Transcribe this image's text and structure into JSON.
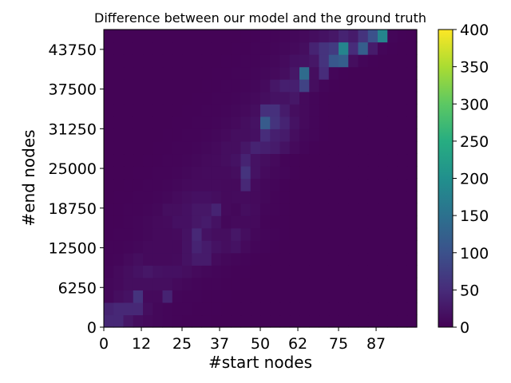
{
  "chart_data": {
    "type": "heatmap",
    "title": "Difference between our model and the ground truth",
    "xlabel": "#start nodes",
    "ylabel": "#end nodes",
    "x_ticks": [
      "0",
      "12",
      "25",
      "37",
      "50",
      "62",
      "75",
      "87"
    ],
    "y_ticks": [
      "0",
      "6250",
      "12500",
      "18750",
      "25000",
      "31250",
      "37500",
      "43750"
    ],
    "x_range": [
      0,
      100
    ],
    "y_range": [
      0,
      46875
    ],
    "colorbar": {
      "range": [
        0,
        400
      ],
      "ticks": [
        "0",
        "50",
        "100",
        "150",
        "200",
        "250",
        "300",
        "350",
        "400"
      ],
      "colormap": "viridis"
    },
    "grid": false,
    "legend": "none",
    "rows_bottom_to_top": [
      [
        45,
        45,
        25,
        15,
        10,
        8,
        6,
        5,
        4,
        4,
        4,
        3,
        3,
        3,
        3,
        3,
        3,
        3,
        3,
        3,
        3,
        3,
        3,
        3,
        3,
        3,
        3,
        3,
        3,
        3,
        3,
        3
      ],
      [
        40,
        45,
        45,
        45,
        15,
        8,
        6,
        5,
        5,
        4,
        4,
        4,
        3,
        3,
        3,
        3,
        3,
        3,
        3,
        3,
        3,
        3,
        3,
        3,
        3,
        3,
        3,
        3,
        3,
        3,
        3,
        3
      ],
      [
        8,
        15,
        20,
        60,
        10,
        10,
        40,
        6,
        5,
        5,
        4,
        4,
        4,
        3,
        3,
        3,
        3,
        3,
        3,
        3,
        3,
        3,
        3,
        3,
        3,
        3,
        3,
        3,
        3,
        3,
        3,
        3
      ],
      [
        8,
        10,
        15,
        15,
        15,
        15,
        15,
        10,
        8,
        6,
        5,
        5,
        4,
        4,
        3,
        3,
        3,
        3,
        3,
        3,
        3,
        3,
        3,
        3,
        3,
        3,
        3,
        3,
        3,
        3,
        3,
        3
      ],
      [
        6,
        10,
        15,
        20,
        25,
        20,
        18,
        18,
        15,
        10,
        8,
        6,
        5,
        4,
        4,
        3,
        3,
        3,
        3,
        3,
        3,
        3,
        3,
        3,
        3,
        3,
        3,
        3,
        3,
        3,
        3,
        3
      ],
      [
        5,
        6,
        10,
        15,
        10,
        10,
        10,
        12,
        20,
        30,
        30,
        12,
        8,
        6,
        5,
        4,
        3,
        3,
        3,
        3,
        3,
        3,
        3,
        3,
        3,
        3,
        3,
        3,
        3,
        3,
        3,
        3
      ],
      [
        5,
        5,
        6,
        8,
        10,
        10,
        10,
        10,
        20,
        40,
        30,
        20,
        15,
        20,
        10,
        6,
        5,
        4,
        3,
        3,
        3,
        3,
        3,
        3,
        3,
        3,
        3,
        3,
        3,
        3,
        3,
        3
      ],
      [
        4,
        5,
        5,
        6,
        8,
        10,
        10,
        12,
        20,
        45,
        20,
        15,
        15,
        25,
        15,
        8,
        6,
        5,
        4,
        3,
        3,
        3,
        3,
        3,
        3,
        3,
        3,
        3,
        3,
        3,
        3,
        3
      ],
      [
        4,
        4,
        5,
        6,
        8,
        10,
        12,
        18,
        18,
        25,
        30,
        20,
        8,
        10,
        10,
        10,
        5,
        4,
        4,
        3,
        3,
        3,
        3,
        3,
        3,
        3,
        3,
        3,
        3,
        3,
        3,
        3
      ],
      [
        4,
        4,
        5,
        5,
        6,
        8,
        15,
        15,
        18,
        25,
        25,
        40,
        10,
        8,
        15,
        12,
        6,
        5,
        4,
        3,
        3,
        3,
        3,
        3,
        3,
        3,
        3,
        3,
        3,
        3,
        3,
        3
      ],
      [
        3,
        4,
        4,
        5,
        5,
        6,
        8,
        12,
        15,
        18,
        18,
        15,
        10,
        12,
        12,
        10,
        8,
        5,
        4,
        3,
        3,
        3,
        3,
        3,
        3,
        3,
        3,
        3,
        3,
        3,
        3,
        3
      ],
      [
        3,
        3,
        4,
        4,
        5,
        5,
        6,
        8,
        10,
        12,
        12,
        12,
        10,
        10,
        45,
        12,
        8,
        6,
        4,
        3,
        3,
        3,
        3,
        3,
        3,
        3,
        3,
        3,
        3,
        3,
        3,
        3
      ],
      [
        3,
        3,
        3,
        4,
        4,
        5,
        5,
        6,
        8,
        10,
        12,
        12,
        12,
        15,
        60,
        20,
        12,
        8,
        6,
        4,
        3,
        3,
        3,
        3,
        3,
        3,
        3,
        3,
        3,
        3,
        3,
        3
      ],
      [
        3,
        3,
        3,
        3,
        4,
        4,
        5,
        5,
        6,
        8,
        10,
        12,
        15,
        20,
        40,
        20,
        15,
        10,
        5,
        4,
        3,
        3,
        3,
        3,
        3,
        3,
        3,
        3,
        3,
        3,
        3,
        3
      ],
      [
        3,
        3,
        3,
        3,
        3,
        4,
        4,
        5,
        5,
        6,
        8,
        10,
        15,
        15,
        25,
        40,
        35,
        30,
        20,
        10,
        6,
        4,
        3,
        3,
        3,
        3,
        3,
        3,
        3,
        3,
        3,
        3
      ],
      [
        3,
        3,
        3,
        3,
        3,
        3,
        4,
        4,
        5,
        5,
        6,
        8,
        10,
        15,
        15,
        18,
        50,
        35,
        30,
        15,
        8,
        6,
        4,
        3,
        3,
        3,
        3,
        3,
        3,
        3,
        3,
        3
      ],
      [
        3,
        3,
        3,
        3,
        3,
        3,
        3,
        4,
        4,
        5,
        5,
        6,
        8,
        10,
        15,
        20,
        115,
        60,
        40,
        20,
        10,
        6,
        4,
        3,
        3,
        3,
        3,
        3,
        3,
        3,
        3,
        3
      ],
      [
        3,
        3,
        3,
        3,
        3,
        3,
        3,
        3,
        4,
        4,
        5,
        5,
        6,
        8,
        10,
        15,
        55,
        55,
        30,
        15,
        10,
        6,
        4,
        3,
        3,
        3,
        3,
        3,
        3,
        3,
        3,
        3
      ],
      [
        3,
        3,
        3,
        3,
        3,
        3,
        3,
        3,
        3,
        4,
        4,
        5,
        5,
        6,
        8,
        10,
        15,
        20,
        20,
        25,
        10,
        6,
        4,
        3,
        3,
        3,
        3,
        3,
        3,
        3,
        3,
        3
      ],
      [
        3,
        3,
        3,
        3,
        3,
        3,
        3,
        3,
        3,
        3,
        4,
        4,
        5,
        5,
        6,
        8,
        12,
        25,
        35,
        35,
        80,
        15,
        6,
        4,
        3,
        3,
        3,
        3,
        3,
        3,
        3,
        3
      ],
      [
        3,
        3,
        3,
        3,
        3,
        3,
        3,
        3,
        3,
        3,
        3,
        4,
        4,
        5,
        5,
        6,
        8,
        10,
        15,
        25,
        140,
        15,
        50,
        6,
        4,
        3,
        3,
        3,
        3,
        3,
        3,
        3
      ],
      [
        3,
        3,
        3,
        3,
        3,
        3,
        3,
        3,
        3,
        3,
        3,
        3,
        4,
        4,
        5,
        5,
        6,
        8,
        12,
        18,
        20,
        25,
        60,
        110,
        120,
        15,
        6,
        4,
        3,
        3,
        3,
        3
      ],
      [
        3,
        3,
        3,
        3,
        3,
        3,
        3,
        3,
        3,
        3,
        3,
        3,
        3,
        4,
        4,
        5,
        5,
        6,
        8,
        10,
        15,
        40,
        60,
        70,
        180,
        50,
        120,
        30,
        6,
        4,
        3,
        3
      ],
      [
        3,
        3,
        3,
        3,
        3,
        3,
        3,
        3,
        3,
        3,
        3,
        3,
        3,
        3,
        4,
        4,
        5,
        5,
        6,
        8,
        10,
        15,
        20,
        25,
        40,
        30,
        60,
        100,
        180,
        6,
        4,
        3
      ]
    ]
  }
}
